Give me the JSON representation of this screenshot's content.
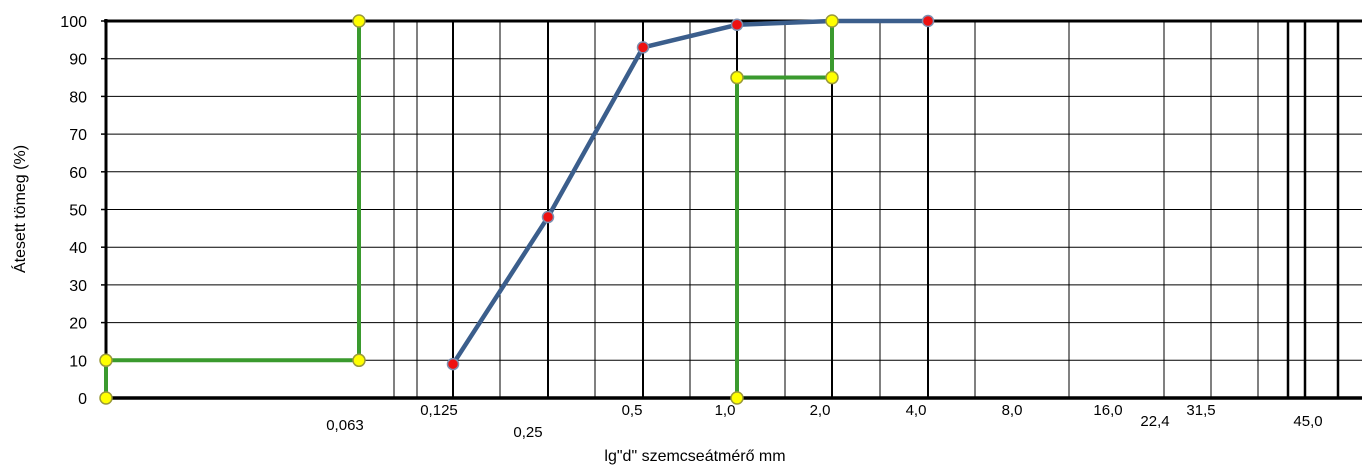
{
  "chart_data": {
    "type": "line",
    "xlabel": "lg\"d\" szemcseátmérő mm",
    "ylabel": "Átesett tömeg (%)",
    "ylim": [
      0,
      100
    ],
    "y_ticks": [
      0,
      10,
      20,
      30,
      40,
      50,
      60,
      70,
      80,
      90,
      100
    ],
    "x_tick_labels": [
      "0,063",
      "0,125",
      "0,25",
      "0,5",
      "1,0",
      "2,0",
      "4,0",
      "8,0",
      "16,0",
      "22,4",
      "31,5",
      "45,0"
    ],
    "grid": true,
    "series": [
      {
        "kind": "grading-curve",
        "color": "#3b5e8c",
        "marker_color": "#ee1111",
        "points": [
          {
            "x": 0.125,
            "y": 9
          },
          {
            "x": 0.25,
            "y": 48
          },
          {
            "x": 0.5,
            "y": 93
          },
          {
            "x": 1.0,
            "y": 99
          },
          {
            "x": 2.0,
            "y": 100
          },
          {
            "x": 4.0,
            "y": 100
          }
        ]
      },
      {
        "kind": "limit-lower",
        "color": "#3a9a2e",
        "marker_color": "#ffff00",
        "points": [
          {
            "x": 0.0,
            "y": 0
          },
          {
            "x": 0.0,
            "y": 10
          },
          {
            "x": 0.063,
            "y": 10
          },
          {
            "x": 0.063,
            "y": 100
          }
        ]
      },
      {
        "kind": "limit-upper",
        "color": "#3a9a2e",
        "marker_color": "#ffff00",
        "points": [
          {
            "x": 1.0,
            "y": 0
          },
          {
            "x": 1.0,
            "y": 85
          },
          {
            "x": 2.0,
            "y": 85
          },
          {
            "x": 2.0,
            "y": 100
          }
        ]
      }
    ]
  }
}
